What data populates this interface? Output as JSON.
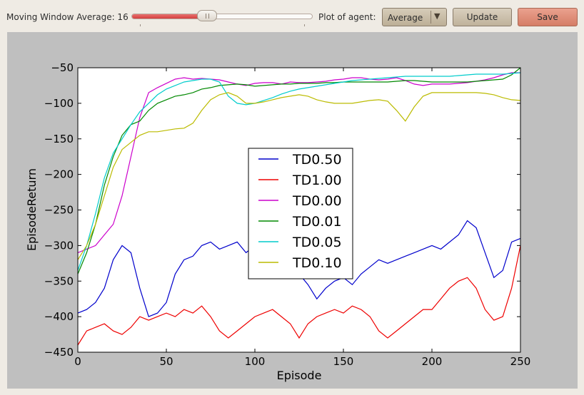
{
  "toolbar": {
    "moving_window_label": "Moving Window Average: 16",
    "moving_window_value": 16,
    "moving_window_fraction": 0.41,
    "plot_of_agent_label": "Plot of agent:",
    "agent_select": {
      "value": "Average",
      "icon": "dropdown-arrow-icon",
      "arrow_glyph": "▼"
    },
    "update_label": "Update",
    "save_label": "Save"
  },
  "colors": {
    "toolbar_bg": "#efebe4",
    "plot_panel_bg": "#bfbfbf",
    "slider_fill": "#d94a4a",
    "save_button": "#d98b77",
    "update_button": "#c9bda8"
  },
  "chart_data": {
    "type": "line",
    "title": "",
    "xlabel": "Episode",
    "ylabel": "EpisodeReturn",
    "xlim": [
      0,
      250
    ],
    "ylim": [
      -450,
      -50
    ],
    "xticks": [
      "0",
      "50",
      "100",
      "150",
      "200",
      "250"
    ],
    "yticks": [
      "-50",
      "-100",
      "-150",
      "-200",
      "-250",
      "-300",
      "-350",
      "-400",
      "-450"
    ],
    "grid": false,
    "legend_position": "center",
    "x": [
      0,
      5,
      10,
      15,
      20,
      25,
      30,
      35,
      40,
      45,
      50,
      55,
      60,
      65,
      70,
      75,
      80,
      85,
      90,
      95,
      100,
      105,
      110,
      115,
      120,
      125,
      130,
      135,
      140,
      145,
      150,
      155,
      160,
      165,
      170,
      175,
      180,
      185,
      190,
      195,
      200,
      205,
      210,
      215,
      220,
      225,
      230,
      235,
      240,
      245,
      250
    ],
    "series": [
      {
        "name": "TD0.50",
        "color": "#0000cc",
        "values": [
          -395,
          -390,
          -380,
          -360,
          -320,
          -300,
          -310,
          -360,
          -400,
          -395,
          -380,
          -340,
          -320,
          -315,
          -300,
          -295,
          -305,
          -300,
          -295,
          -310,
          -300,
          -295,
          -300,
          -310,
          -320,
          -340,
          -355,
          -375,
          -360,
          -350,
          -345,
          -355,
          -340,
          -330,
          -320,
          -325,
          -320,
          -315,
          -310,
          -305,
          -300,
          -305,
          -295,
          -285,
          -265,
          -275,
          -310,
          -345,
          -335,
          -295,
          -290
        ]
      },
      {
        "name": "TD1.00",
        "color": "#ee0000",
        "values": [
          -440,
          -420,
          -415,
          -410,
          -420,
          -425,
          -415,
          -400,
          -405,
          -400,
          -395,
          -400,
          -390,
          -395,
          -385,
          -400,
          -420,
          -430,
          -420,
          -410,
          -400,
          -395,
          -390,
          -400,
          -410,
          -430,
          -410,
          -400,
          -395,
          -390,
          -395,
          -385,
          -390,
          -400,
          -420,
          -430,
          -420,
          -410,
          -400,
          -390,
          -390,
          -375,
          -360,
          -350,
          -345,
          -360,
          -390,
          -405,
          -400,
          -360,
          -300
        ]
      },
      {
        "name": "TD0.00",
        "color": "#cc00cc",
        "values": [
          -310,
          -305,
          -300,
          -285,
          -270,
          -230,
          -175,
          -120,
          -85,
          -78,
          -72,
          -66,
          -64,
          -66,
          -65,
          -66,
          -67,
          -70,
          -73,
          -75,
          -72,
          -71,
          -71,
          -73,
          -70,
          -71,
          -71,
          -70,
          -69,
          -67,
          -66,
          -64,
          -64,
          -66,
          -67,
          -66,
          -64,
          -68,
          -73,
          -75,
          -73,
          -73,
          -73,
          -72,
          -71,
          -69,
          -67,
          -64,
          -60,
          -57,
          -57
        ]
      },
      {
        "name": "TD0.01",
        "color": "#008800",
        "values": [
          -340,
          -310,
          -270,
          -215,
          -175,
          -145,
          -130,
          -125,
          -110,
          -100,
          -95,
          -90,
          -88,
          -85,
          -80,
          -78,
          -75,
          -74,
          -73,
          -74,
          -76,
          -75,
          -74,
          -73,
          -73,
          -72,
          -72,
          -72,
          -71,
          -71,
          -70,
          -70,
          -70,
          -70,
          -70,
          -70,
          -69,
          -68,
          -68,
          -69,
          -70,
          -70,
          -70,
          -70,
          -70,
          -69,
          -68,
          -67,
          -66,
          -60,
          -50
        ]
      },
      {
        "name": "TD0.05",
        "color": "#00cccc",
        "values": [
          -335,
          -300,
          -255,
          -205,
          -170,
          -150,
          -130,
          -112,
          -100,
          -88,
          -80,
          -75,
          -70,
          -68,
          -66,
          -66,
          -70,
          -90,
          -100,
          -102,
          -100,
          -96,
          -92,
          -87,
          -83,
          -80,
          -78,
          -76,
          -74,
          -72,
          -70,
          -68,
          -67,
          -66,
          -65,
          -64,
          -63,
          -62,
          -62,
          -62,
          -62,
          -62,
          -62,
          -61,
          -60,
          -59,
          -59,
          -59,
          -59,
          -58,
          -57
        ]
      },
      {
        "name": "TD0.10",
        "color": "#bbbb00",
        "values": [
          -320,
          -300,
          -270,
          -230,
          -190,
          -165,
          -155,
          -145,
          -140,
          -140,
          -138,
          -136,
          -135,
          -128,
          -110,
          -95,
          -88,
          -85,
          -90,
          -100,
          -100,
          -98,
          -95,
          -92,
          -90,
          -88,
          -90,
          -95,
          -98,
          -100,
          -100,
          -100,
          -98,
          -96,
          -95,
          -97,
          -110,
          -125,
          -105,
          -90,
          -85,
          -85,
          -85,
          -85,
          -85,
          -85,
          -86,
          -88,
          -92,
          -95,
          -96
        ]
      }
    ]
  }
}
